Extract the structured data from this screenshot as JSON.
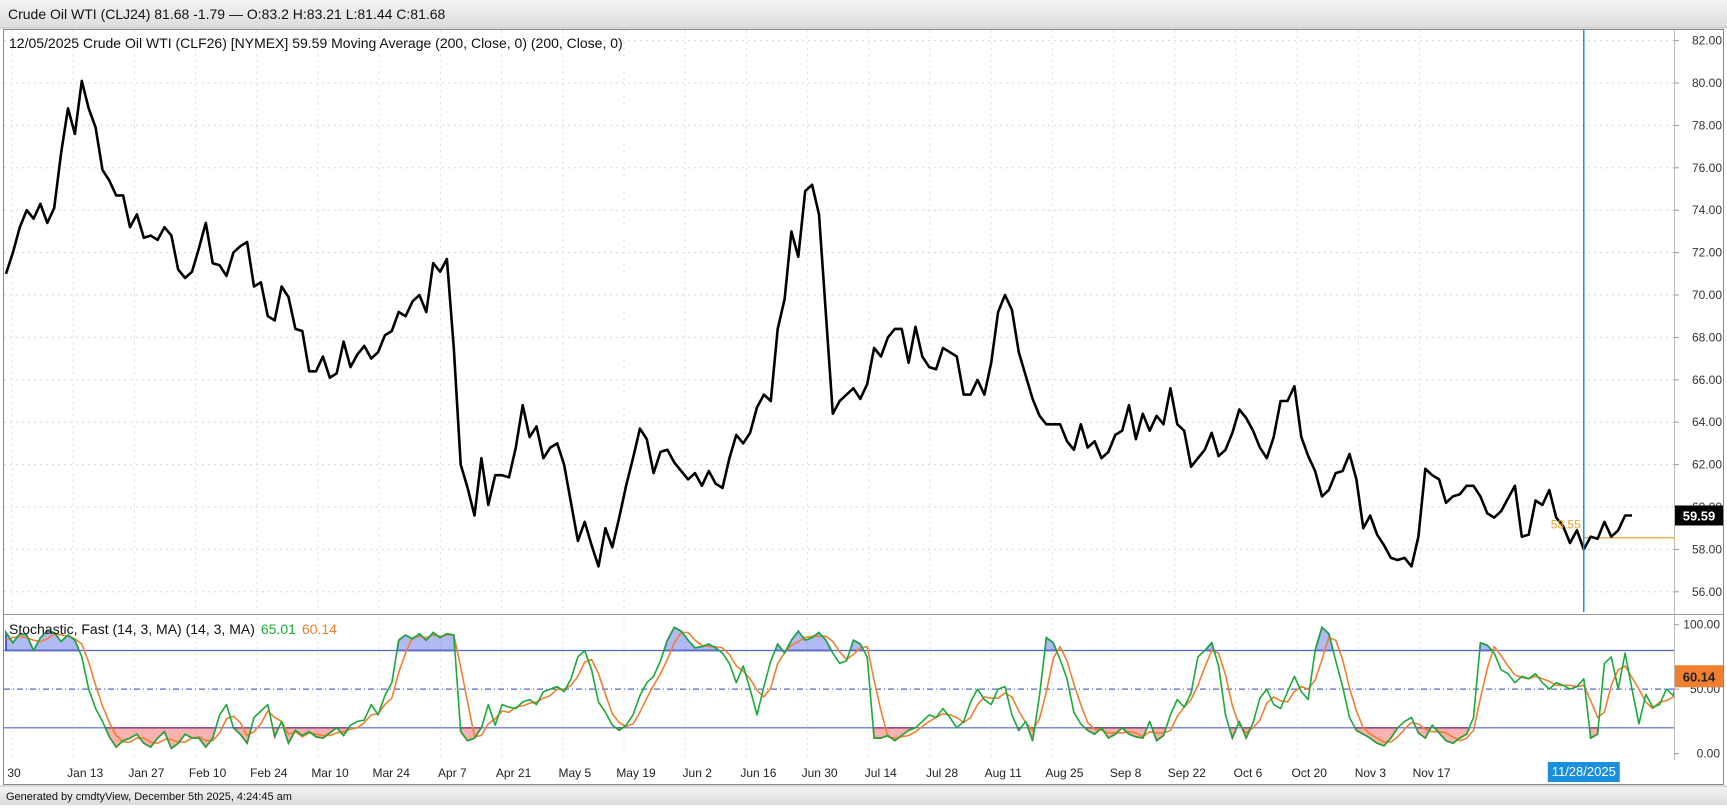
{
  "header": {
    "title": "Crude Oil WTI (CLJ24) 81.68 -1.79 — O:83.2 H:83.21 L:81.44 C:81.68"
  },
  "footer": {
    "generated": "Generated by cmdtyView, December 5th 2025, 4:24:45 am"
  },
  "colors": {
    "price_line": "#000000",
    "ma_line": "#f0a030",
    "crosshair": "#1a8fe0",
    "stoch_k": "#1aaa3a",
    "stoch_d": "#f08030",
    "overbought_fill": "#2238e0",
    "oversold_fill": "#ee2222",
    "band_line": "#5566cc"
  },
  "chart_data": [
    {
      "type": "line",
      "legend": "12/05/2025 Crude Oil WTI (CLF26) [NYMEX] 59.59 Moving Average (200, Close, 0) (200, Close, 0)",
      "ylim": [
        55,
        82.5
      ],
      "y_ticks": [
        "56.00",
        "58.00",
        "60.00",
        "62.00",
        "64.00",
        "66.00",
        "68.00",
        "70.00",
        "72.00",
        "74.00",
        "76.00",
        "78.00",
        "80.00",
        "82.00"
      ],
      "grid": true,
      "last_value_label": "59.59",
      "moving_average": {
        "name": "Moving Average (200, Close, 0)",
        "value": 58.55,
        "label": "58.55"
      },
      "series": [
        {
          "values": [
            71.0,
            72.0,
            73.2,
            74.0,
            73.6,
            74.3,
            73.4,
            74.1,
            76.7,
            78.8,
            77.6,
            80.1,
            78.8,
            77.9,
            75.9,
            75.4,
            74.7,
            74.7,
            73.2,
            73.8,
            72.7,
            72.8,
            72.6,
            73.2,
            72.8,
            71.2,
            70.8,
            71.1,
            72.2,
            73.4,
            71.5,
            71.4,
            70.9,
            72.0,
            72.3,
            72.5,
            70.4,
            70.6,
            69.0,
            68.8,
            70.4,
            69.9,
            68.4,
            68.3,
            66.4,
            66.4,
            67.1,
            66.1,
            66.3,
            67.8,
            66.6,
            67.2,
            67.6,
            67.0,
            67.3,
            68.1,
            68.3,
            69.2,
            69.0,
            69.7,
            70.0,
            69.2,
            71.5,
            71.1,
            71.7,
            67.5,
            62.0,
            60.9,
            59.6,
            62.3,
            60.1,
            61.5,
            61.5,
            61.4,
            62.8,
            64.8,
            63.3,
            63.8,
            62.3,
            62.8,
            63.0,
            62.0,
            60.2,
            58.4,
            59.3,
            58.2,
            57.2,
            59.0,
            58.1,
            59.5,
            61.0,
            62.3,
            63.7,
            63.2,
            61.6,
            62.6,
            62.7,
            62.1,
            61.7,
            61.3,
            61.6,
            61.0,
            61.7,
            61.1,
            60.9,
            62.3,
            63.4,
            63.0,
            63.5,
            64.7,
            65.3,
            65.0,
            68.4,
            69.8,
            73.0,
            71.8,
            74.9,
            75.2,
            73.8,
            69.1,
            64.4,
            65.0,
            65.3,
            65.6,
            65.1,
            65.8,
            67.5,
            67.1,
            68.0,
            68.4,
            68.4,
            66.8,
            68.5,
            67.1,
            66.6,
            66.5,
            67.5,
            67.3,
            67.1,
            65.3,
            65.3,
            66.0,
            65.3,
            66.8,
            69.2,
            70.0,
            69.3,
            67.3,
            66.2,
            65.1,
            64.3,
            63.9,
            63.9,
            63.9,
            63.1,
            62.7,
            63.9,
            62.8,
            63.1,
            62.3,
            62.6,
            63.4,
            63.6,
            64.8,
            63.2,
            64.4,
            63.6,
            64.3,
            63.9,
            65.6,
            63.9,
            63.6,
            61.9,
            62.3,
            62.7,
            63.5,
            62.4,
            62.7,
            63.5,
            64.6,
            64.2,
            63.6,
            62.8,
            62.3,
            63.3,
            65.0,
            65.0,
            65.7,
            63.3,
            62.4,
            61.7,
            60.5,
            60.8,
            61.6,
            61.7,
            62.5,
            61.3,
            59.0,
            59.6,
            58.7,
            58.2,
            57.6,
            57.5,
            57.6,
            57.2,
            58.6,
            61.8,
            61.5,
            61.3,
            60.2,
            60.5,
            60.6,
            61.0,
            61.0,
            60.5,
            59.7,
            59.5,
            59.8,
            60.4,
            61.0,
            58.6,
            58.7,
            60.3,
            60.1,
            60.8,
            59.5,
            59.1,
            58.3,
            58.9,
            58.0,
            58.6,
            58.5,
            59.3,
            58.6,
            58.9,
            59.6,
            59.6
          ]
        }
      ]
    },
    {
      "type": "line",
      "legend_prefix": "Stochastic, Fast (14, 3, MA)  (14, 3, MA)",
      "ylim": [
        -5,
        106
      ],
      "y_ticks": [
        "0.00",
        "50.00",
        "100.00"
      ],
      "bands": [
        20,
        50,
        80
      ],
      "last_value_label": "60.14",
      "series": [
        {
          "name": "%K",
          "label": "65.01",
          "values": [
            94,
            86,
            93,
            92,
            80,
            90,
            95,
            94,
            87,
            92,
            88,
            75,
            50,
            35,
            25,
            13,
            5,
            10,
            12,
            15,
            8,
            5,
            12,
            17,
            4,
            8,
            15,
            12,
            12,
            5,
            12,
            30,
            38,
            20,
            15,
            8,
            28,
            33,
            38,
            13,
            25,
            8,
            18,
            14,
            17,
            13,
            12,
            16,
            20,
            14,
            22,
            25,
            26,
            38,
            30,
            45,
            55,
            88,
            92,
            89,
            93,
            88,
            94,
            90,
            93,
            92,
            17,
            10,
            12,
            20,
            38,
            22,
            38,
            36,
            35,
            40,
            42,
            38,
            48,
            50,
            52,
            48,
            58,
            75,
            80,
            65,
            40,
            32,
            22,
            18,
            22,
            30,
            45,
            55,
            60,
            72,
            88,
            98,
            95,
            88,
            82,
            83,
            85,
            82,
            78,
            70,
            55,
            68,
            50,
            30,
            52,
            72,
            85,
            78,
            88,
            95,
            88,
            90,
            94,
            88,
            78,
            70,
            72,
            88,
            85,
            75,
            12,
            12,
            14,
            10,
            14,
            18,
            20,
            25,
            30,
            28,
            35,
            28,
            20,
            25,
            40,
            50,
            42,
            38,
            50,
            52,
            30,
            18,
            25,
            10,
            45,
            90,
            86,
            73,
            58,
            32,
            23,
            18,
            15,
            20,
            12,
            15,
            20,
            15,
            13,
            12,
            25,
            10,
            14,
            30,
            42,
            36,
            47,
            75,
            80,
            86,
            68,
            30,
            12,
            25,
            12,
            24,
            43,
            50,
            38,
            35,
            48,
            60,
            48,
            42,
            80,
            98,
            93,
            72,
            52,
            28,
            18,
            15,
            12,
            8,
            6,
            12,
            20,
            25,
            28,
            16,
            12,
            22,
            16,
            10,
            8,
            12,
            15,
            28,
            86,
            84,
            78,
            65,
            62,
            55,
            60,
            58,
            62,
            55,
            50,
            55,
            53,
            50,
            52,
            58,
            12,
            15,
            70,
            75,
            50,
            78,
            50,
            23,
            46,
            36,
            38,
            50,
            45,
            68,
            65
          ]
        },
        {
          "name": "%D",
          "label": "60.14",
          "values": [
            88,
            90,
            91,
            90,
            88,
            87,
            89,
            93,
            92,
            91,
            89,
            85,
            71,
            53,
            37,
            24,
            14,
            9,
            9,
            12,
            12,
            9,
            8,
            11,
            11,
            9,
            9,
            12,
            13,
            10,
            10,
            16,
            27,
            29,
            24,
            14,
            17,
            23,
            33,
            28,
            25,
            15,
            17,
            13,
            16,
            15,
            14,
            14,
            16,
            17,
            19,
            20,
            24,
            30,
            31,
            38,
            43,
            63,
            78,
            90,
            91,
            90,
            92,
            91,
            92,
            92,
            67,
            40,
            13,
            14,
            23,
            27,
            33,
            32,
            36,
            37,
            39,
            40,
            43,
            45,
            50,
            50,
            53,
            60,
            71,
            73,
            62,
            46,
            31,
            24,
            21,
            23,
            32,
            43,
            53,
            62,
            73,
            86,
            94,
            94,
            88,
            84,
            83,
            83,
            82,
            77,
            68,
            64,
            58,
            49,
            44,
            51,
            70,
            78,
            84,
            87,
            90,
            91,
            91,
            91,
            87,
            79,
            73,
            77,
            82,
            83,
            57,
            33,
            13,
            12,
            13,
            14,
            17,
            21,
            25,
            28,
            31,
            30,
            28,
            24,
            28,
            38,
            44,
            43,
            43,
            47,
            44,
            33,
            24,
            18,
            27,
            48,
            74,
            83,
            72,
            54,
            38,
            24,
            19,
            18,
            16,
            16,
            16,
            17,
            16,
            13,
            17,
            16,
            16,
            18,
            29,
            36,
            42,
            53,
            67,
            80,
            78,
            61,
            37,
            22,
            16,
            20,
            26,
            39,
            44,
            41,
            40,
            48,
            52,
            50,
            57,
            73,
            90,
            88,
            73,
            51,
            33,
            20,
            15,
            12,
            9,
            9,
            13,
            19,
            24,
            23,
            19,
            17,
            17,
            16,
            13,
            10,
            12,
            18,
            43,
            66,
            83,
            76,
            68,
            61,
            59,
            58,
            60,
            58,
            56,
            53,
            53,
            53,
            52,
            53,
            41,
            28,
            32,
            53,
            65,
            68,
            59,
            50,
            40,
            35,
            40,
            41,
            44,
            54,
            60
          ]
        }
      ]
    }
  ],
  "x_axis": {
    "labels": [
      "30",
      "Jan 13",
      "Jan 27",
      "Feb 10",
      "Feb 24",
      "Mar 10",
      "Mar 24",
      "Apr 7",
      "Apr 21",
      "May 5",
      "May 19",
      "Jun 2",
      "Jun 16",
      "Jun 30",
      "Jul 14",
      "Jul 28",
      "Aug 11",
      "Aug 25",
      "Sep 8",
      "Sep 22",
      "Oct 6",
      "Oct 20",
      "Nov 3",
      "Nov 17"
    ],
    "crosshair_label": "11/28/2025"
  }
}
